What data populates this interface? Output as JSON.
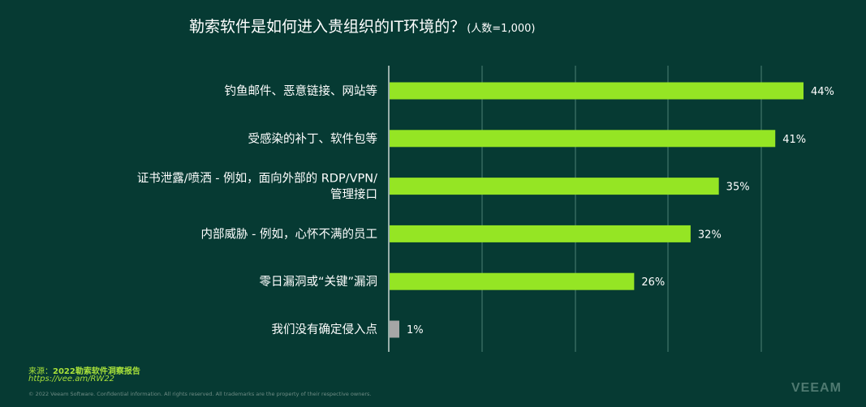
{
  "title": {
    "main": "勒索软件是如何进入贵组织的IT环境的？",
    "sub": "(人数=1,000)"
  },
  "chart_data": {
    "type": "bar",
    "orientation": "horizontal",
    "categories": [
      [
        "钓鱼邮件、恶意链接、网站等"
      ],
      [
        "受感染的补丁、软件包等"
      ],
      [
        "证书泄露/喷洒 - 例如，面向外部的 RDP/VPN/",
        "管理接口"
      ],
      [
        "内部威胁 - 例如，心怀不满的员工"
      ],
      [
        "零日漏洞或“关键”漏洞"
      ],
      [
        "我们没有确定侵入点"
      ]
    ],
    "values": [
      44,
      41,
      35,
      32,
      26,
      1
    ],
    "value_labels": [
      "44%",
      "41%",
      "35%",
      "32%",
      "26%",
      "1%"
    ],
    "bar_colors": [
      "#95e524",
      "#95e524",
      "#95e524",
      "#95e524",
      "#95e524",
      "#a6a6a6"
    ],
    "xlim": [
      0,
      50
    ],
    "grid": true
  },
  "source": {
    "prefix": "来源：",
    "name": "2022勒索软件洞察报告",
    "link": "https://vee.am/RW22"
  },
  "footer": "© 2022 Veeam Software. Confidential information. All rights reserved. All trademarks are the property of their respective owners.",
  "logo": "VEEAM"
}
